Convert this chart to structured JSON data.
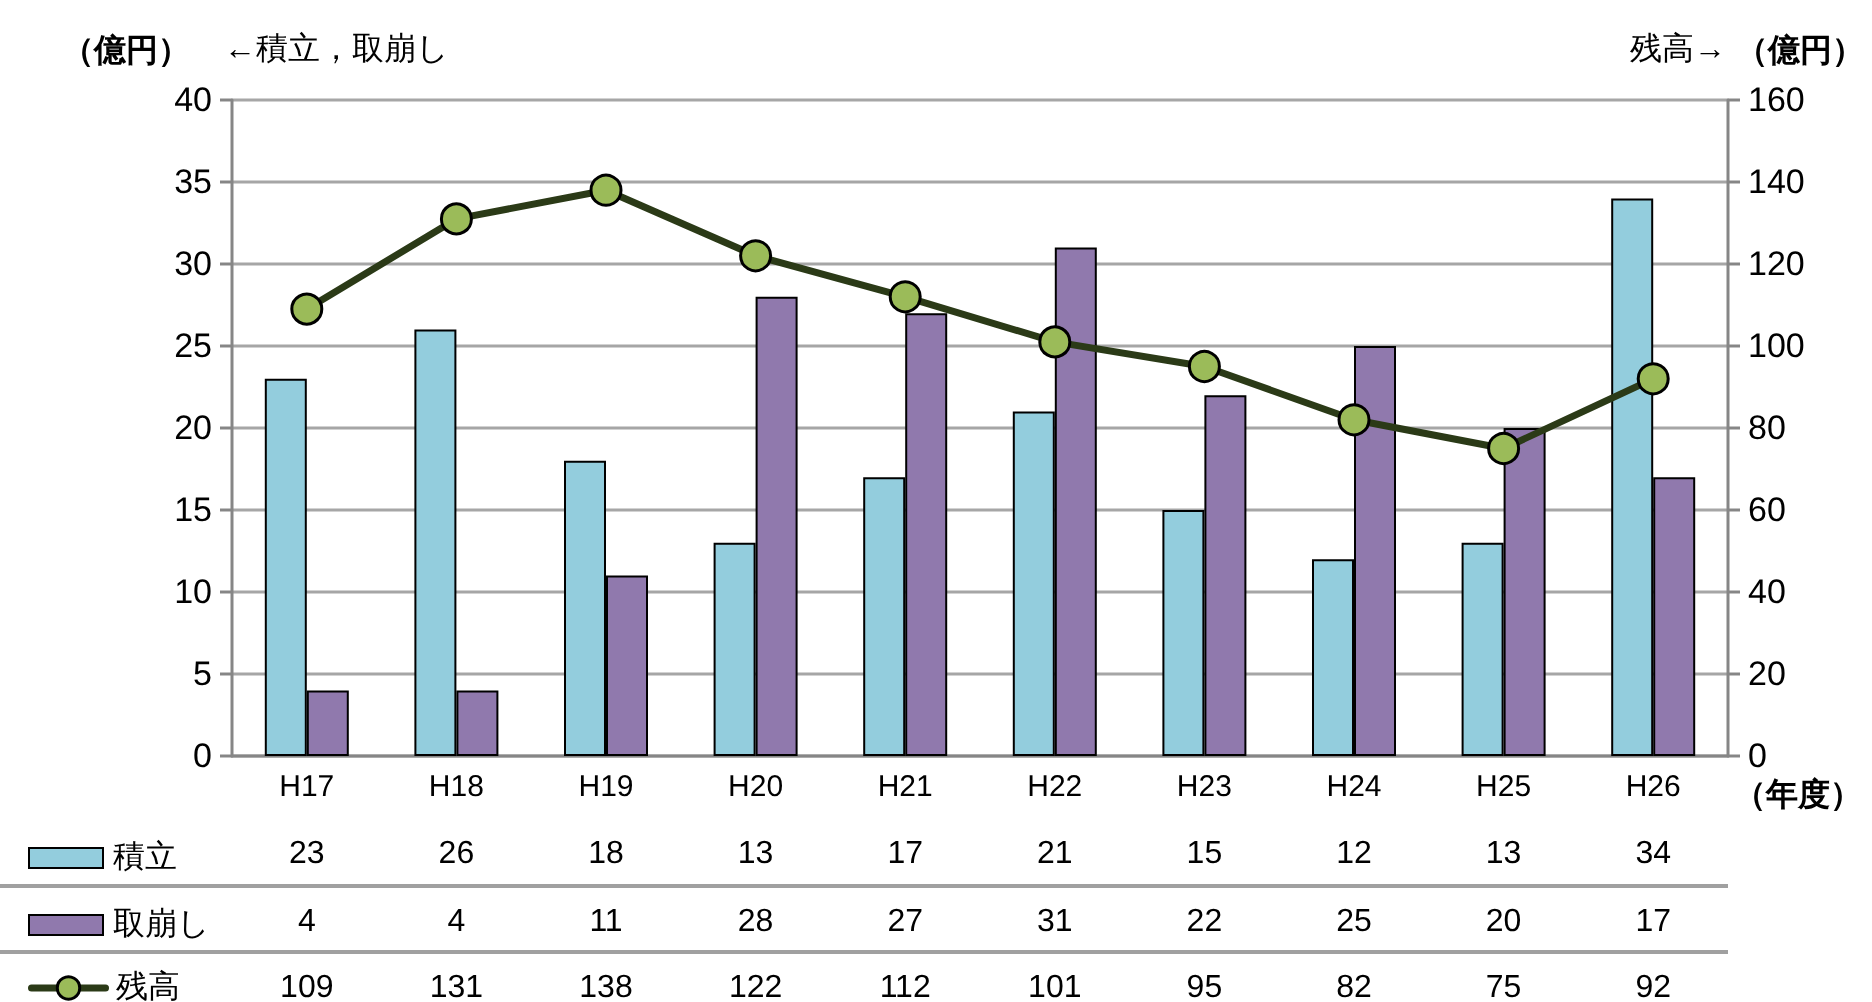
{
  "chart_data": {
    "type": "bar",
    "categories": [
      "H17",
      "H18",
      "H19",
      "H20",
      "H21",
      "H22",
      "H23",
      "H24",
      "H25",
      "H26"
    ],
    "series": [
      {
        "name": "積立",
        "color": "#93cddd",
        "values": [
          23,
          26,
          18,
          13,
          17,
          21,
          15,
          12,
          13,
          34
        ]
      },
      {
        "name": "取崩し",
        "color": "#9079ad",
        "values": [
          4,
          4,
          11,
          28,
          27,
          31,
          22,
          25,
          20,
          17
        ]
      },
      {
        "name": "残高",
        "type": "line",
        "axis": "y2",
        "color": "#2b3a17",
        "colors": [
          "#9bbb59",
          "#9bbb59",
          "#9bbb59",
          "#9bbb59",
          "#9bbb59",
          "#9bbb59",
          "#9bbb59",
          "#9bbb59",
          "#9bbb59",
          "#9bbb59"
        ],
        "values": [
          109,
          131,
          138,
          122,
          112,
          101,
          95,
          82,
          75,
          92
        ]
      }
    ],
    "ylabel": "（億円）",
    "y2label": "（億円）",
    "xlabel": "（年度）",
    "annotations": [
      "←積立，取崩し",
      "残高→"
    ],
    "ylim": [
      0,
      40
    ],
    "yticks": [
      0,
      5,
      10,
      15,
      20,
      25,
      30,
      35,
      40
    ],
    "y2lim": [
      0,
      160
    ],
    "y2ticks": [
      0,
      20,
      40,
      60,
      80,
      100,
      120,
      140,
      160
    ],
    "grid": "y",
    "legend": "bottom left",
    "data_labels": true,
    "marker": "circle",
    "line_style": "solid"
  }
}
